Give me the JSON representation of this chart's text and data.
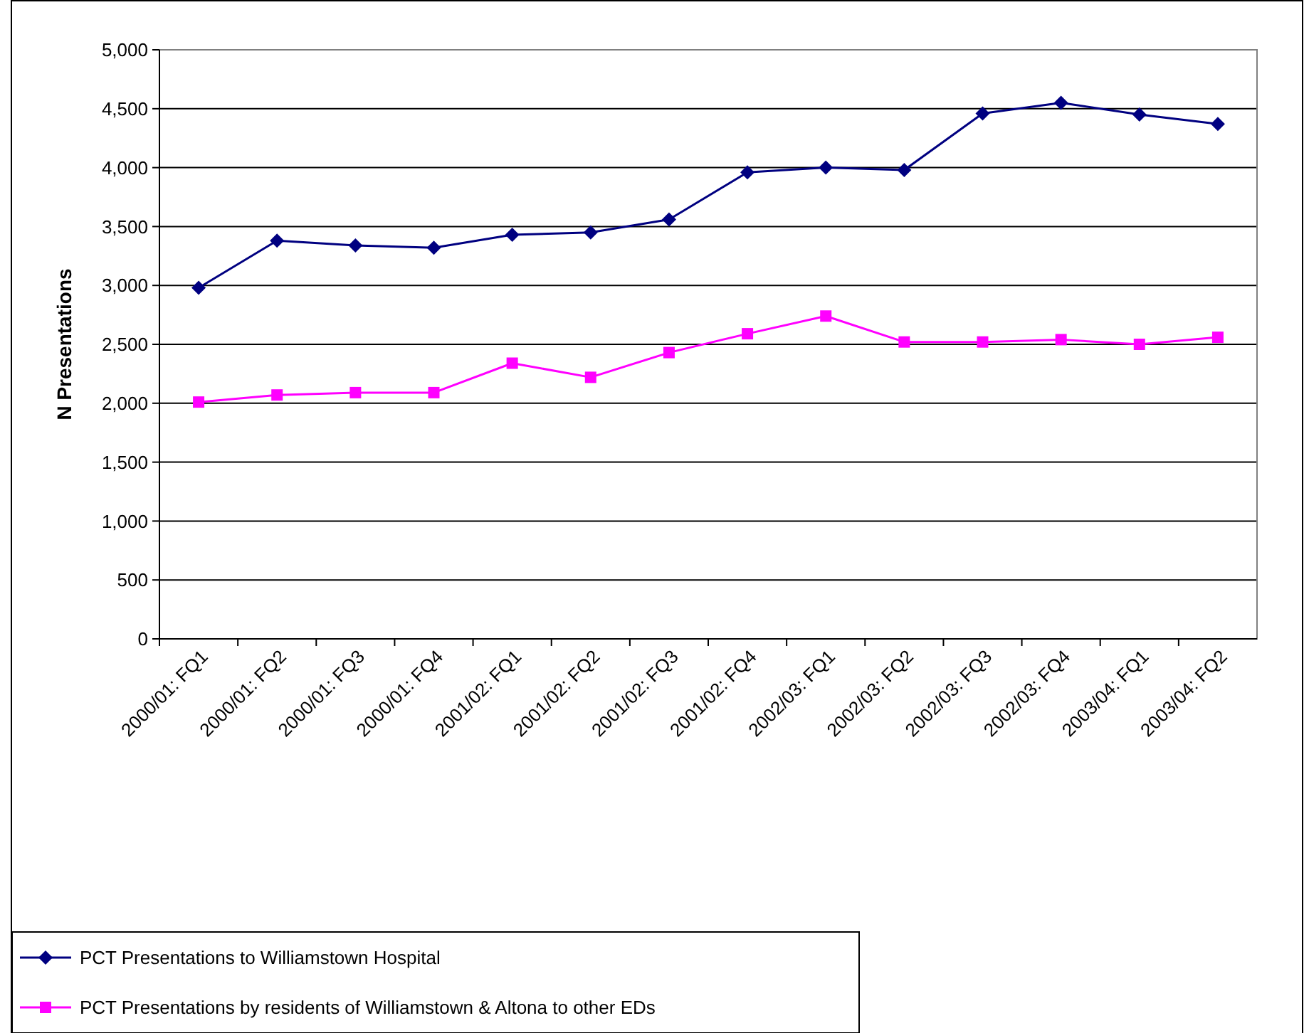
{
  "chart_data": {
    "type": "line",
    "ylabel": "N Presentations",
    "categories": [
      "2000/01: FQ1",
      "2000/01: FQ2",
      "2000/01: FQ3",
      "2000/01: FQ4",
      "2001/02: FQ1",
      "2001/02: FQ2",
      "2001/02: FQ3",
      "2001/02: FQ4",
      "2002/03: FQ1",
      "2002/03: FQ2",
      "2002/03: FQ3",
      "2002/03: FQ4",
      "2003/04: FQ1",
      "2003/04: FQ2"
    ],
    "series": [
      {
        "name": "PCT Presentations to Williamstown Hospital",
        "color": "#000080",
        "marker": "diamond",
        "values": [
          2980,
          3380,
          3340,
          3320,
          3430,
          3450,
          3560,
          3960,
          4000,
          3980,
          4460,
          4550,
          4450,
          4370
        ]
      },
      {
        "name": "PCT Presentations by residents of Williamstown & Altona to other EDs",
        "color": "#ff00ff",
        "marker": "square",
        "values": [
          2010,
          2070,
          2090,
          2090,
          2340,
          2220,
          2430,
          2590,
          2740,
          2520,
          2520,
          2540,
          2500,
          2560
        ]
      }
    ],
    "ylim": [
      0,
      5000
    ],
    "yticks": [
      {
        "value": 0,
        "label": "0"
      },
      {
        "value": 500,
        "label": "500"
      },
      {
        "value": 1000,
        "label": "1,000"
      },
      {
        "value": 1500,
        "label": "1,500"
      },
      {
        "value": 2000,
        "label": "2,000"
      },
      {
        "value": 2500,
        "label": "2,500"
      },
      {
        "value": 3000,
        "label": "3,000"
      },
      {
        "value": 3500,
        "label": "3,500"
      },
      {
        "value": 4000,
        "label": "4,000"
      },
      {
        "value": 4500,
        "label": "4,500"
      },
      {
        "value": 5000,
        "label": "5,000"
      }
    ],
    "grid": "y",
    "legend": "bottom left",
    "line_style": "solid"
  }
}
